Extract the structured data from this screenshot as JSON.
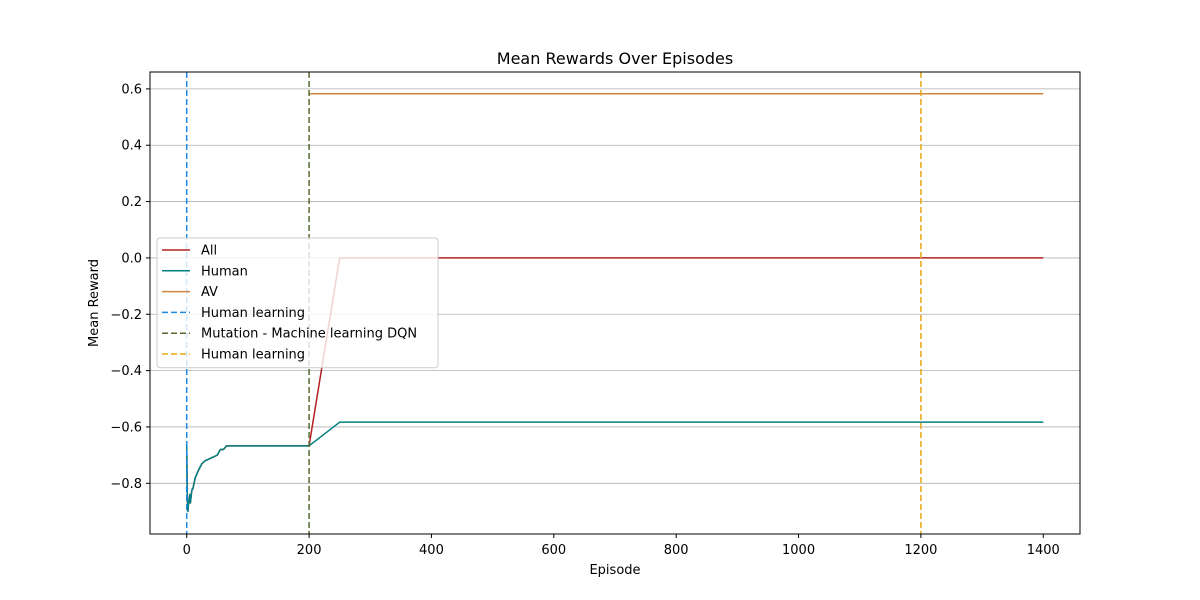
{
  "chart_data": {
    "type": "line",
    "title": "Mean Rewards Over Episodes",
    "xlabel": "Episode",
    "ylabel": "Mean Reward",
    "xlim": [
      -60,
      1460
    ],
    "ylim": [
      -0.98,
      0.66
    ],
    "xticks": [
      0,
      200,
      400,
      600,
      800,
      1000,
      1200,
      1400
    ],
    "yticks": [
      -0.8,
      -0.6,
      -0.4,
      -0.2,
      0.0,
      0.2,
      0.4,
      0.6
    ],
    "xtick_labels": [
      "0",
      "200",
      "400",
      "600",
      "800",
      "1000",
      "1200",
      "1400"
    ],
    "ytick_labels": [
      "−0.8",
      "−0.6",
      "−0.4",
      "−0.2",
      "0.0",
      "0.2",
      "0.4",
      "0.6"
    ],
    "grid": "horizontal",
    "legend_position": "center-left",
    "series": [
      {
        "name": "All",
        "color": "#b22222",
        "dash": "solid",
        "x": [
          0,
          1,
          2,
          3,
          4,
          5,
          6,
          7,
          8,
          9,
          10,
          12,
          14,
          16,
          20,
          25,
          30,
          40,
          50,
          55,
          60,
          65,
          70,
          100,
          150,
          200,
          250,
          300,
          400,
          600,
          800,
          1000,
          1200,
          1400
        ],
        "y": [
          -0.66,
          -0.85,
          -0.9,
          -0.87,
          -0.86,
          -0.84,
          -0.87,
          -0.85,
          -0.83,
          -0.82,
          -0.82,
          -0.8,
          -0.78,
          -0.77,
          -0.75,
          -0.73,
          -0.72,
          -0.71,
          -0.7,
          -0.68,
          -0.68,
          -0.667,
          -0.667,
          -0.667,
          -0.667,
          -0.667,
          0.0,
          0.0,
          0.0,
          0.0,
          0.0,
          0.0,
          0.0,
          0.0
        ]
      },
      {
        "name": "Human",
        "color": "#008080",
        "dash": "solid",
        "x": [
          0,
          1,
          2,
          3,
          4,
          5,
          6,
          7,
          8,
          9,
          10,
          12,
          14,
          16,
          20,
          25,
          30,
          40,
          50,
          55,
          60,
          65,
          70,
          100,
          150,
          200,
          250,
          300,
          400,
          600,
          800,
          1000,
          1200,
          1400
        ],
        "y": [
          -0.66,
          -0.85,
          -0.9,
          -0.87,
          -0.86,
          -0.84,
          -0.87,
          -0.85,
          -0.83,
          -0.82,
          -0.82,
          -0.8,
          -0.78,
          -0.77,
          -0.75,
          -0.73,
          -0.72,
          -0.71,
          -0.7,
          -0.68,
          -0.68,
          -0.667,
          -0.667,
          -0.667,
          -0.667,
          -0.667,
          -0.583,
          -0.583,
          -0.583,
          -0.583,
          -0.583,
          -0.583,
          -0.583,
          -0.583
        ]
      },
      {
        "name": "AV",
        "color": "#cd853f",
        "dash": "solid",
        "x": [
          200,
          400,
          600,
          800,
          1000,
          1200,
          1400
        ],
        "y": [
          0.583,
          0.583,
          0.583,
          0.583,
          0.583,
          0.583,
          0.583
        ]
      }
    ],
    "vlines": [
      {
        "name": "Human learning",
        "x": 0,
        "color": "#1e88e5"
      },
      {
        "name": "Mutation - Machine learning DQN",
        "x": 200,
        "color": "#556b2f"
      },
      {
        "name": "Human learning",
        "x": 1200,
        "color": "#e6a817"
      }
    ]
  }
}
